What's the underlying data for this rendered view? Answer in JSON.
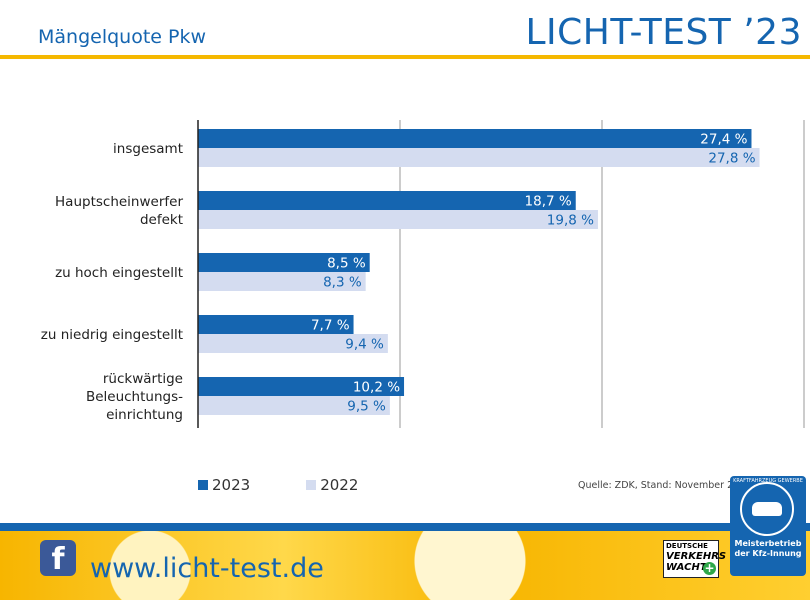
{
  "header": {
    "subtitle": "Mängelquote Pkw",
    "brand": "LICHT-TEST ’23"
  },
  "chart_data": {
    "type": "bar",
    "orientation": "horizontal",
    "categories": [
      [
        "insgesamt"
      ],
      [
        "Hauptscheinwerfer",
        "defekt"
      ],
      [
        "zu hoch eingestellt"
      ],
      [
        "zu niedrig eingestellt"
      ],
      [
        "rückwärtige",
        "Beleuchtungs-",
        "einrichtung"
      ]
    ],
    "series": [
      {
        "name": "2023",
        "values": [
          27.4,
          18.7,
          8.5,
          7.7,
          10.2
        ],
        "labels": [
          "27,4 %",
          "18,7 %",
          "8,5 %",
          "7,7 %",
          "10,2 %"
        ],
        "color": "#1565b0"
      },
      {
        "name": "2022",
        "values": [
          27.8,
          19.8,
          8.3,
          9.4,
          9.5
        ],
        "labels": [
          "27,8 %",
          "19,8 %",
          "8,3 %",
          "9,4 %",
          "9,5 %"
        ],
        "color": "#d4dcf0"
      }
    ],
    "xlim": [
      0,
      30
    ],
    "gridlines": [
      10,
      20,
      30
    ],
    "grid": true,
    "legend": "bottom-left"
  },
  "source": "Quelle: ZDK, Stand: November 2023",
  "footer": {
    "facebook_glyph": "f",
    "url": "www.licht-test.de",
    "verkehrswacht_small": "DEUTSCHE",
    "verkehrswacht_main": "VERKEHRS WACHT",
    "seal_ring": "KRAFTFAHRZEUG GEWERBE",
    "seal_line1": "Meisterbetrieb",
    "seal_line2": "der Kfz-Innung"
  },
  "colors": {
    "accent_blue": "#1565b0",
    "accent_yellow": "#f5b800"
  }
}
